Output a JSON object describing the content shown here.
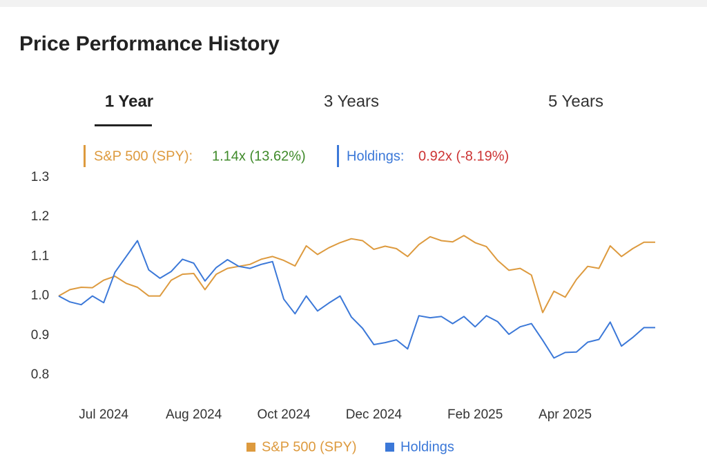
{
  "title": "Price Performance History",
  "tabs": [
    "1 Year",
    "3 Years",
    "5 Years"
  ],
  "summary": [
    {
      "label": "S&P 500 (SPY):",
      "value": "1.14x (13.62%)"
    },
    {
      "label": "Holdings:",
      "value": "0.92x (-8.19%)"
    }
  ],
  "chart_data": {
    "type": "line",
    "categories": [
      null,
      null,
      null,
      null,
      "Jul 2024",
      null,
      null,
      null,
      null,
      null,
      null,
      null,
      "Aug 2024",
      null,
      null,
      null,
      null,
      null,
      null,
      null,
      "Oct 2024",
      null,
      null,
      null,
      null,
      null,
      null,
      null,
      "Dec 2024",
      null,
      null,
      null,
      null,
      null,
      null,
      null,
      null,
      "Feb 2025",
      null,
      null,
      null,
      null,
      null,
      null,
      null,
      "Apr 2025",
      null,
      null,
      null,
      null,
      null,
      null,
      null,
      null
    ],
    "series": [
      {
        "name": "S&P 500 (SPY)",
        "color": "#dd9a3e",
        "values": [
          1.0,
          1.016,
          1.022,
          1.021,
          1.04,
          1.05,
          1.032,
          1.022,
          1.0,
          1.0,
          1.04,
          1.055,
          1.057,
          1.016,
          1.055,
          1.07,
          1.075,
          1.08,
          1.093,
          1.1,
          1.09,
          1.076,
          1.127,
          1.105,
          1.122,
          1.135,
          1.145,
          1.14,
          1.118,
          1.126,
          1.12,
          1.1,
          1.13,
          1.15,
          1.14,
          1.137,
          1.153,
          1.135,
          1.125,
          1.09,
          1.065,
          1.07,
          1.053,
          0.958,
          1.012,
          0.997,
          1.042,
          1.075,
          1.07,
          1.127,
          1.1,
          1.12,
          1.136,
          1.136
        ]
      },
      {
        "name": "Holdings",
        "color": "#3b78d8",
        "values": [
          1.0,
          0.985,
          0.978,
          1.0,
          0.983,
          1.06,
          1.1,
          1.14,
          1.066,
          1.045,
          1.062,
          1.093,
          1.083,
          1.038,
          1.072,
          1.092,
          1.075,
          1.07,
          1.08,
          1.087,
          0.992,
          0.955,
          1.0,
          0.962,
          0.982,
          1.0,
          0.947,
          0.918,
          0.877,
          0.882,
          0.889,
          0.866,
          0.95,
          0.945,
          0.948,
          0.93,
          0.948,
          0.922,
          0.95,
          0.935,
          0.903,
          0.922,
          0.93,
          0.888,
          0.843,
          0.857,
          0.858,
          0.883,
          0.89,
          0.934,
          0.873,
          0.895,
          0.92,
          0.92
        ]
      }
    ],
    "ylim": [
      0.8,
      1.3
    ],
    "yticks": [
      1.3,
      1.2,
      1.1,
      {
        "value": 1,
        "label": "1.0"
      },
      0.9,
      0.8
    ],
    "grid": false,
    "legend": "bottom"
  }
}
